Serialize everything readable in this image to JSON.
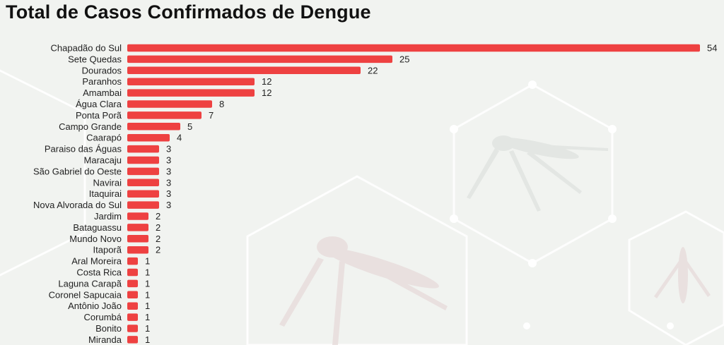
{
  "chart_data": {
    "type": "bar",
    "orientation": "horizontal",
    "title": "Total de Casos Confirmados de Dengue",
    "xlabel": "",
    "ylabel": "",
    "xlim": [
      0,
      54
    ],
    "grid": false,
    "bar_color": "#ee4141",
    "categories": [
      "Chapadão do Sul",
      "Sete Quedas",
      "Dourados",
      "Paranhos",
      "Amambai",
      "Água Clara",
      "Ponta Porã",
      "Campo Grande",
      "Caarapó",
      "Paraiso das Águas",
      "Maracaju",
      "São Gabriel do Oeste",
      "Navirai",
      "Itaquirai",
      "Nova Alvorada do Sul",
      "Jardim",
      "Bataguassu",
      "Mundo Novo",
      "Itaporã",
      "Aral Moreira",
      "Costa Rica",
      "Laguna Carapã",
      "Coronel Sapucaia",
      "Antônio João",
      "Corumbá",
      "Bonito",
      "Miranda"
    ],
    "values": [
      54,
      25,
      22,
      12,
      12,
      8,
      7,
      5,
      4,
      3,
      3,
      3,
      3,
      3,
      3,
      2,
      2,
      2,
      2,
      1,
      1,
      1,
      1,
      1,
      1,
      1,
      1
    ]
  },
  "colors": {
    "background": "#f1f3f0",
    "decoration": "#e6ebe6",
    "text": "#222222"
  }
}
